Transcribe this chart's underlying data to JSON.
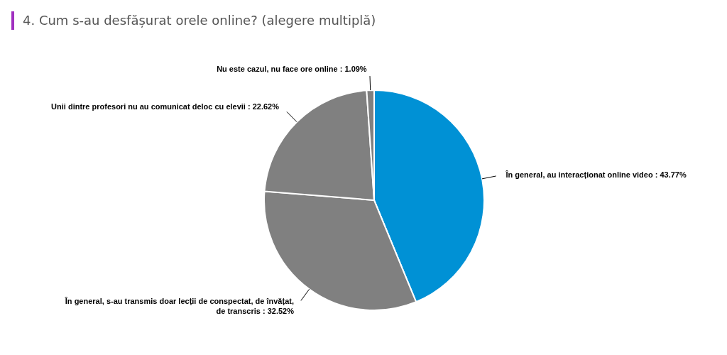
{
  "chart_data": {
    "type": "pie",
    "title": "4. Cum s-au desfășurat orele online? (alegere multiplă)",
    "categories": [
      "În general, au interacționat online video",
      "În general, s-au transmis doar lecții de conspectat, de învățat, de transcris",
      "Unii dintre profesori nu au comunicat deloc cu elevii",
      "Nu este cazul, nu face ore online"
    ],
    "values": [
      43.77,
      32.52,
      22.62,
      1.09
    ],
    "value_labels": [
      "43.77%",
      "32.52%",
      "22.62%",
      "1.09%"
    ],
    "colors": [
      "#0091d5",
      "#808080",
      "#808080",
      "#808080"
    ],
    "legend": false
  }
}
